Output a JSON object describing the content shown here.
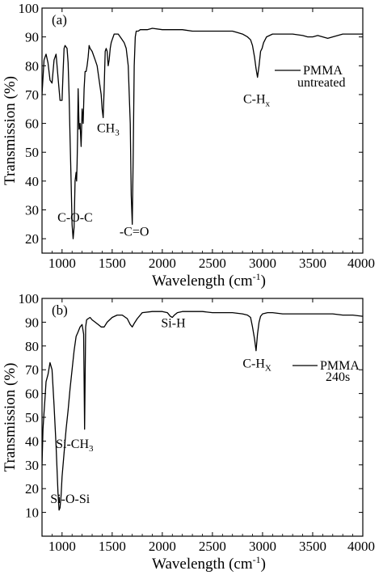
{
  "chart_data": [
    {
      "type": "line",
      "panel_label": "(a)",
      "xlabel": "Wavelength (cm",
      "xlabel_sup": "-1",
      "xlabel_close": ")",
      "ylabel": "Transmission (%)",
      "xlim": [
        800,
        4000
      ],
      "ylim": [
        15,
        100
      ],
      "grid": false,
      "x_ticks": [
        1000,
        1500,
        2000,
        2500,
        3000,
        3500,
        4000
      ],
      "x_tick_labels": [
        "1000",
        "1500",
        "2000",
        "2500",
        "3000",
        "3500",
        "4000"
      ],
      "y_ticks": [
        20,
        30,
        40,
        50,
        60,
        70,
        80,
        90,
        100
      ],
      "y_tick_labels": [
        "20",
        "30",
        "40",
        "50",
        "60",
        "70",
        "80",
        "90",
        "100"
      ],
      "legend": {
        "line1": "PMMA",
        "line2": "untreated",
        "placement": "right"
      },
      "annotations": [
        {
          "text": "C-O-C",
          "x": 1130,
          "y": 26
        },
        {
          "text": "CH",
          "sub": "3",
          "x": 1460,
          "y": 57
        },
        {
          "text": "-C=O",
          "x": 1720,
          "y": 21
        },
        {
          "text": "C-H",
          "sub": "x",
          "x": 2940,
          "y": 67
        }
      ],
      "series": [
        {
          "color": "#000000",
          "x": [
            800,
            820,
            840,
            860,
            880,
            900,
            920,
            940,
            960,
            980,
            1000,
            1010,
            1020,
            1030,
            1050,
            1060,
            1070,
            1080,
            1090,
            1100,
            1110,
            1120,
            1130,
            1140,
            1145,
            1150,
            1155,
            1160,
            1170,
            1180,
            1190,
            1200,
            1210,
            1220,
            1230,
            1240,
            1250,
            1260,
            1270,
            1280,
            1300,
            1330,
            1350,
            1370,
            1390,
            1400,
            1410,
            1420,
            1430,
            1440,
            1450,
            1460,
            1470,
            1480,
            1490,
            1500,
            1520,
            1540,
            1560,
            1580,
            1600,
            1620,
            1640,
            1660,
            1680,
            1690,
            1700,
            1710,
            1720,
            1730,
            1740,
            1750,
            1760,
            1780,
            1800,
            1850,
            1900,
            2000,
            2100,
            2200,
            2300,
            2400,
            2500,
            2600,
            2700,
            2750,
            2800,
            2850,
            2880,
            2900,
            2920,
            2935,
            2950,
            2965,
            2980,
            2995,
            3010,
            3040,
            3100,
            3200,
            3300,
            3400,
            3450,
            3500,
            3550,
            3600,
            3650,
            3700,
            3800,
            3900,
            4000
          ],
          "y": [
            70,
            82,
            84,
            81,
            75,
            74,
            82,
            84,
            76,
            68,
            68,
            78,
            86,
            87,
            86,
            81,
            70,
            55,
            40,
            25,
            20,
            24,
            40,
            43,
            40,
            46,
            55,
            72,
            58,
            60,
            52,
            65,
            60,
            72,
            78,
            78,
            80,
            83,
            87,
            86,
            85,
            82,
            80,
            75,
            70,
            65,
            62,
            72,
            85,
            86,
            85,
            80,
            82,
            86,
            88,
            89,
            91,
            91,
            91,
            90,
            89,
            88,
            86,
            80,
            60,
            35,
            25,
            50,
            80,
            90,
            92,
            92,
            92,
            92.5,
            92.5,
            92.5,
            93,
            92.5,
            92.5,
            92.5,
            92,
            92,
            92,
            92,
            92,
            91.5,
            91,
            90,
            89,
            87,
            83,
            79,
            76,
            80,
            85,
            86,
            88,
            90,
            91,
            91,
            91,
            90.5,
            90,
            90,
            90.5,
            90,
            89.5,
            90,
            91,
            91,
            91
          ]
        }
      ]
    },
    {
      "type": "line",
      "panel_label": "(b)",
      "xlabel": "Wavelength (cm",
      "xlabel_sup": "-1",
      "xlabel_close": ")",
      "ylabel": "Transmission (%)",
      "xlim": [
        800,
        4000
      ],
      "ylim": [
        0,
        100
      ],
      "grid": false,
      "x_ticks": [
        1000,
        1500,
        2000,
        2500,
        3000,
        3500,
        4000
      ],
      "x_tick_labels": [
        "1000",
        "1500",
        "2000",
        "2500",
        "3000",
        "3500",
        "4000"
      ],
      "y_ticks": [
        10,
        20,
        30,
        40,
        50,
        60,
        70,
        80,
        90,
        100
      ],
      "y_tick_labels": [
        "10",
        "20",
        "30",
        "40",
        "50",
        "60",
        "70",
        "80",
        "90",
        "100"
      ],
      "legend": {
        "line1": "PMMA",
        "line2": "240s",
        "placement": "right"
      },
      "annotations": [
        {
          "text": "Si-CH",
          "sub": "3",
          "x": 1125,
          "y": 37
        },
        {
          "text": "Si-O-Si",
          "x": 1080,
          "y": 14
        },
        {
          "text": "Si-H",
          "x": 2110,
          "y": 88
        },
        {
          "text": "C-H",
          "sub": "X",
          "x": 2945,
          "y": 71
        }
      ],
      "series": [
        {
          "color": "#000000",
          "x": [
            800,
            810,
            820,
            830,
            840,
            860,
            880,
            900,
            920,
            940,
            960,
            970,
            980,
            990,
            1000,
            1020,
            1040,
            1060,
            1080,
            1100,
            1120,
            1140,
            1160,
            1180,
            1200,
            1215,
            1225,
            1230,
            1235,
            1245,
            1260,
            1280,
            1300,
            1330,
            1360,
            1390,
            1420,
            1450,
            1500,
            1550,
            1600,
            1650,
            1680,
            1700,
            1720,
            1750,
            1800,
            1900,
            2000,
            2050,
            2080,
            2100,
            2120,
            2150,
            2200,
            2300,
            2400,
            2500,
            2600,
            2700,
            2800,
            2850,
            2880,
            2900,
            2920,
            2935,
            2950,
            2965,
            2980,
            3000,
            3050,
            3100,
            3200,
            3300,
            3400,
            3500,
            3600,
            3700,
            3800,
            3900,
            4000
          ],
          "y": [
            30,
            45,
            52,
            58,
            65,
            68,
            73,
            70,
            55,
            38,
            18,
            11,
            12,
            17,
            25,
            35,
            45,
            53,
            62,
            70,
            78,
            84,
            86,
            88,
            89,
            85,
            45,
            65,
            88,
            91,
            91.5,
            92,
            91,
            90,
            89,
            88,
            88,
            90,
            92,
            93,
            93,
            91.5,
            89,
            88,
            89.5,
            91.5,
            94,
            94.5,
            94.5,
            94,
            92.5,
            92,
            93,
            94,
            94.5,
            94.5,
            94.5,
            94,
            94,
            94,
            93.5,
            93,
            92,
            88,
            83,
            78,
            85,
            90,
            92.5,
            93.5,
            94,
            94,
            93.5,
            93.5,
            93.5,
            93.5,
            93.5,
            93.5,
            93,
            93,
            92.5
          ]
        }
      ]
    }
  ]
}
